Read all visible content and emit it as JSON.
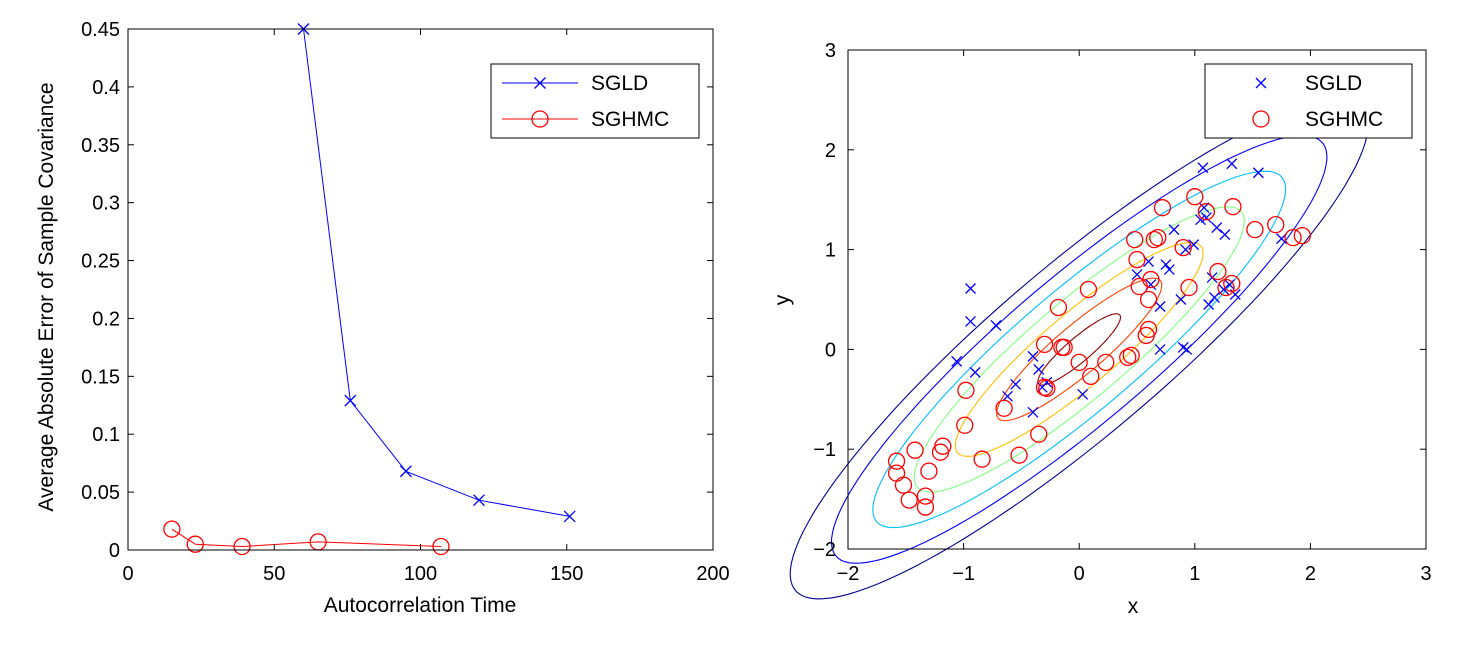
{
  "chart_data": [
    {
      "type": "line",
      "title": "",
      "xlabel": "Autocorrelation Time",
      "ylabel": "Average Absolute Error of Sample Covariance",
      "xlim": [
        0,
        200
      ],
      "ylim": [
        0,
        0.45
      ],
      "xticks": [
        "0",
        "50",
        "100",
        "150",
        "200"
      ],
      "yticks": [
        "0",
        "0.05",
        "0.1",
        "0.15",
        "0.2",
        "0.25",
        "0.3",
        "0.35",
        "0.4",
        "0.45"
      ],
      "grid": false,
      "legend_position": "top-right",
      "series": [
        {
          "name": "SGLD",
          "color": "#0000ff",
          "marker": "x",
          "x": [
            60,
            76,
            95,
            120,
            151
          ],
          "y": [
            0.45,
            0.129,
            0.068,
            0.043,
            0.029
          ]
        },
        {
          "name": "SGHMC",
          "color": "#ff0000",
          "marker": "o",
          "x": [
            15,
            23,
            39,
            65,
            107
          ],
          "y": [
            0.018,
            0.005,
            0.003,
            0.007,
            0.003
          ]
        }
      ]
    },
    {
      "type": "scatter",
      "title": "",
      "xlabel": "x",
      "ylabel": "y",
      "xlim": [
        -2,
        3
      ],
      "ylim": [
        -2,
        3
      ],
      "xticks": [
        "−2",
        "−1",
        "0",
        "1",
        "2",
        "3"
      ],
      "yticks": [
        "−2",
        "−1",
        "0",
        "1",
        "2",
        "3"
      ],
      "grid": false,
      "legend_position": "top-right",
      "contour": {
        "center": [
          0,
          0
        ],
        "covariance": [
          [
            1,
            0.9
          ],
          [
            0.9,
            1
          ]
        ],
        "levels": [
          "#00008f",
          "#0000ff",
          "#00bfff",
          "#80ff80",
          "#ffbf00",
          "#ff4000",
          "#8f0000"
        ]
      },
      "series": [
        {
          "name": "SGLD",
          "color": "#0000ff",
          "marker": "x",
          "points": [
            [
              1.07,
              1.82
            ],
            [
              1.32,
              1.86
            ],
            [
              1.55,
              1.77
            ],
            [
              -0.94,
              0.61
            ],
            [
              -0.94,
              0.28
            ],
            [
              -0.72,
              0.24
            ],
            [
              -1.06,
              -0.12
            ],
            [
              -0.9,
              -0.23
            ],
            [
              -0.55,
              -0.35
            ],
            [
              -0.62,
              -0.47
            ],
            [
              -0.32,
              -0.38
            ],
            [
              -0.4,
              -0.63
            ],
            [
              -0.35,
              -0.2
            ],
            [
              -0.4,
              -0.07
            ],
            [
              -0.28,
              -0.33
            ],
            [
              0.03,
              -0.45
            ],
            [
              0.7,
              0.0
            ],
            [
              0.9,
              0.02
            ],
            [
              0.93,
              0.0
            ],
            [
              0.5,
              0.75
            ],
            [
              0.62,
              0.65
            ],
            [
              0.7,
              0.43
            ],
            [
              0.75,
              0.85
            ],
            [
              0.78,
              0.8
            ],
            [
              0.88,
              0.5
            ],
            [
              0.92,
              1.0
            ],
            [
              0.99,
              1.05
            ],
            [
              0.82,
              1.2
            ],
            [
              1.05,
              1.3
            ],
            [
              1.1,
              1.32
            ],
            [
              1.15,
              0.72
            ],
            [
              1.17,
              0.52
            ],
            [
              1.12,
              0.45
            ],
            [
              1.25,
              0.6
            ],
            [
              1.35,
              0.55
            ],
            [
              1.3,
              0.65
            ],
            [
              1.08,
              1.42
            ],
            [
              1.19,
              1.22
            ],
            [
              1.26,
              1.15
            ],
            [
              1.75,
              1.11
            ],
            [
              0.6,
              0.88
            ]
          ]
        },
        {
          "name": "SGHMC",
          "color": "#ff0000",
          "marker": "o",
          "points": [
            [
              -1.58,
              -1.12
            ],
            [
              -1.58,
              -1.24
            ],
            [
              -1.52,
              -1.36
            ],
            [
              -1.47,
              -1.51
            ],
            [
              -1.42,
              -1.01
            ],
            [
              -1.33,
              -1.47
            ],
            [
              -1.33,
              -1.58
            ],
            [
              -1.3,
              -1.22
            ],
            [
              -1.2,
              -1.03
            ],
            [
              -1.18,
              -0.97
            ],
            [
              -0.99,
              -0.76
            ],
            [
              -0.98,
              -0.41
            ],
            [
              -0.84,
              -1.1
            ],
            [
              -0.65,
              -0.59
            ],
            [
              -0.52,
              -1.06
            ],
            [
              -0.35,
              -0.85
            ],
            [
              -0.3,
              0.05
            ],
            [
              -0.3,
              -0.38
            ],
            [
              -0.28,
              -0.39
            ],
            [
              -0.18,
              0.42
            ],
            [
              -0.15,
              0.02
            ],
            [
              -0.13,
              0.02
            ],
            [
              0.0,
              -0.13
            ],
            [
              0.08,
              0.6
            ],
            [
              0.1,
              -0.27
            ],
            [
              0.23,
              -0.13
            ],
            [
              0.42,
              -0.08
            ],
            [
              0.45,
              -0.06
            ],
            [
              0.48,
              1.1
            ],
            [
              0.5,
              0.9
            ],
            [
              0.52,
              0.63
            ],
            [
              0.58,
              0.14
            ],
            [
              0.6,
              0.2
            ],
            [
              0.6,
              0.5
            ],
            [
              0.62,
              0.7
            ],
            [
              0.65,
              1.1
            ],
            [
              0.68,
              1.12
            ],
            [
              0.72,
              1.42
            ],
            [
              0.9,
              1.02
            ],
            [
              0.95,
              0.62
            ],
            [
              1.0,
              1.53
            ],
            [
              1.1,
              1.38
            ],
            [
              1.2,
              0.78
            ],
            [
              1.27,
              0.62
            ],
            [
              1.32,
              0.66
            ],
            [
              1.33,
              1.43
            ],
            [
              1.52,
              1.2
            ],
            [
              1.7,
              1.25
            ],
            [
              1.85,
              1.12
            ],
            [
              1.93,
              1.14
            ]
          ]
        }
      ]
    }
  ]
}
